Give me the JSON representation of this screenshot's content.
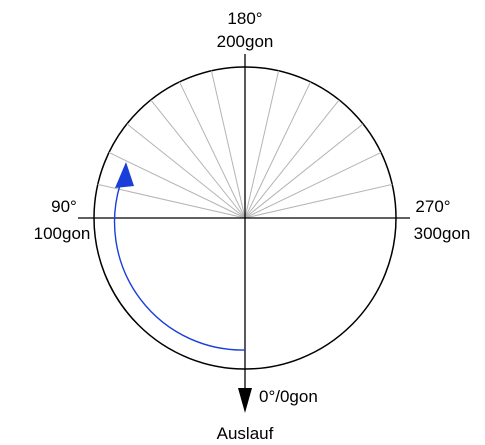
{
  "labels": {
    "top_degrees": "180°",
    "top_gon": "200gon",
    "left_degrees": "90°",
    "left_gon": "100gon",
    "right_degrees": "270°",
    "right_gon": "300gon",
    "bottom_angle": "0°/0gon",
    "bottom_caption": "Auslauf"
  },
  "fan": {
    "count": 13,
    "from_deg": 90,
    "to_deg": 270
  },
  "colors": {
    "stroke": "#000000",
    "fan_lines": "#b4b4b4",
    "rotation_arrow": "#1a3fd8"
  }
}
